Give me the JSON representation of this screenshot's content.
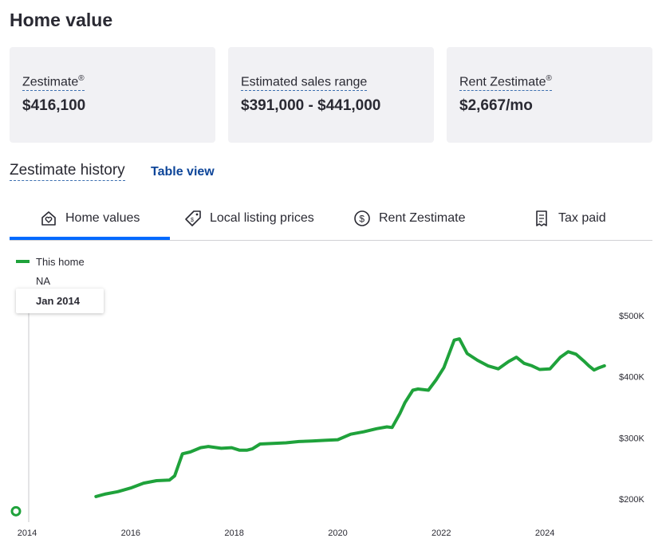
{
  "title": "Home value",
  "cards": [
    {
      "label": "Zestimate",
      "sup": "®",
      "value": "$416,100"
    },
    {
      "label": "Estimated sales range",
      "sup": "",
      "value": "$391,000 - $441,000"
    },
    {
      "label": "Rent Zestimate",
      "sup": "®",
      "value": "$2,667/mo"
    }
  ],
  "history": {
    "title": "Zestimate history",
    "table_view": "Table view"
  },
  "tabs": [
    {
      "label": "Home values",
      "icon": "home-heart-icon",
      "active": true
    },
    {
      "label": "Local listing prices",
      "icon": "price-tag-icon",
      "active": false
    },
    {
      "label": "Rent Zestimate",
      "icon": "dollar-circle-icon",
      "active": false
    },
    {
      "label": "Tax paid",
      "icon": "receipt-icon",
      "active": false
    }
  ],
  "legend": {
    "label": "This home",
    "value": "NA",
    "color": "#1fa23b"
  },
  "tooltip": {
    "date": "Jan 2014"
  },
  "chart_data": {
    "type": "line",
    "series": [
      {
        "name": "This home",
        "color": "#1fa23b",
        "x": [
          2015.33,
          2015.5,
          2015.75,
          2016.0,
          2016.25,
          2016.5,
          2016.75,
          2016.85,
          2017.0,
          2017.15,
          2017.35,
          2017.5,
          2017.75,
          2017.95,
          2018.1,
          2018.25,
          2018.35,
          2018.5,
          2018.75,
          2019.0,
          2019.25,
          2019.5,
          2019.75,
          2020.0,
          2020.25,
          2020.5,
          2020.75,
          2020.95,
          2021.05,
          2021.2,
          2021.3,
          2021.45,
          2021.55,
          2021.75,
          2021.9,
          2022.05,
          2022.25,
          2022.35,
          2022.5,
          2022.7,
          2022.9,
          2023.1,
          2023.3,
          2023.45,
          2023.6,
          2023.75,
          2023.9,
          2024.1,
          2024.3,
          2024.45,
          2024.6,
          2024.75,
          2024.85,
          2024.95,
          2025.05,
          2025.15
        ],
        "y": [
          204,
          208,
          212,
          218,
          226,
          230,
          231,
          238,
          274,
          277,
          284,
          286,
          283,
          284,
          280,
          280,
          282,
          290,
          291,
          292,
          294,
          295,
          296,
          297,
          306,
          310,
          315,
          318,
          317,
          340,
          358,
          378,
          380,
          378,
          395,
          415,
          460,
          462,
          438,
          427,
          418,
          413,
          425,
          432,
          422,
          418,
          412,
          413,
          432,
          441,
          437,
          426,
          418,
          411,
          415,
          418
        ]
      }
    ],
    "x_ticks": [
      "2014",
      "2016",
      "2018",
      "2020",
      "2022",
      "2024"
    ],
    "y_ticks": [
      "$200K",
      "$300K",
      "$400K",
      "$500K"
    ],
    "xlim": [
      2014,
      2025.2
    ],
    "ylim": [
      200,
      500
    ],
    "marker": {
      "x": 2014,
      "y": 180
    }
  }
}
